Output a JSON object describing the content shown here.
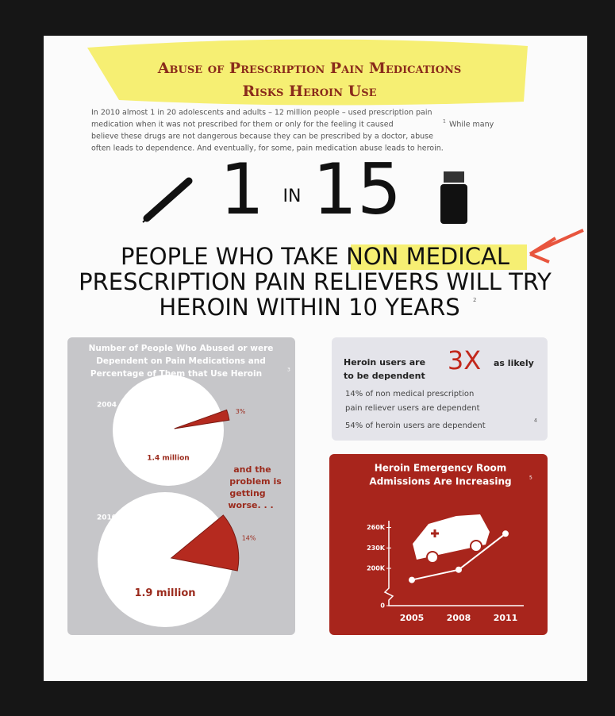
{
  "header": {
    "title_lines": [
      "Abuse of Prescription Pain Medications",
      "Risks Heroin Use"
    ],
    "intro_lines": [
      "In 2010 almost 1 in 20 adolescents and adults – 12 million people – used prescription pain",
      "medication when it was not prescribed for them or only for the feeling it caused",
      "believe these drugs are not dangerous because they can be prescribed by a doctor, abuse",
      "often leads to dependence. And eventually, for some, pain medication abuse leads to heroin."
    ],
    "intro_footnote": "1",
    "intro_line2_end": "While many"
  },
  "stat": {
    "number": "1",
    "word": "IN",
    "of": "15"
  },
  "headline": {
    "lines": [
      "PEOPLE WHO TAKE NON MEDICAL",
      "PRESCRIPTION PAIN RELIEVERS WILL TRY",
      "HEROIN WITHIN 10 YEARS"
    ],
    "footnote": "2"
  },
  "pie_panel": {
    "title_lines": [
      "Number of People Who Abused or were",
      "Dependent on Pain Medications and",
      "Percentage of Them that Use Heroin"
    ],
    "footnote": "3",
    "note_lines": [
      "and the",
      "problem is",
      "getting",
      "worse. . ."
    ]
  },
  "dependence": {
    "lead": "Heroin users are",
    "multiplier": "3X",
    "tail": "as likely",
    "tail2": "to be dependent",
    "lines": [
      "14% of non medical prescription",
      "pain reliever users are dependent",
      "54% of heroin users are dependent"
    ],
    "footnote": "4"
  },
  "chart_data": [
    {
      "type": "pie",
      "categories": [
        "2004",
        "2010"
      ],
      "values": [
        3,
        14
      ],
      "value_labels": [
        "3%",
        "14%"
      ],
      "totals": [
        "1.4 million",
        "1.9 million"
      ],
      "color": "#b52a1f"
    },
    {
      "type": "line",
      "title_lines": [
        "Heroin Emergency Room",
        "Admissions Are Increasing"
      ],
      "footnote": "5",
      "x": [
        "2005",
        "2008",
        "2011"
      ],
      "values": [
        183000,
        198000,
        251000
      ],
      "color": "#ffffff",
      "ylim": [
        0,
        270000
      ],
      "yticks": [
        0,
        {
          "value": 200000,
          "label": "200K"
        },
        {
          "value": 230000,
          "label": "230K"
        },
        {
          "value": 260000,
          "label": "260K"
        }
      ],
      "y_axis_break": true
    }
  ]
}
